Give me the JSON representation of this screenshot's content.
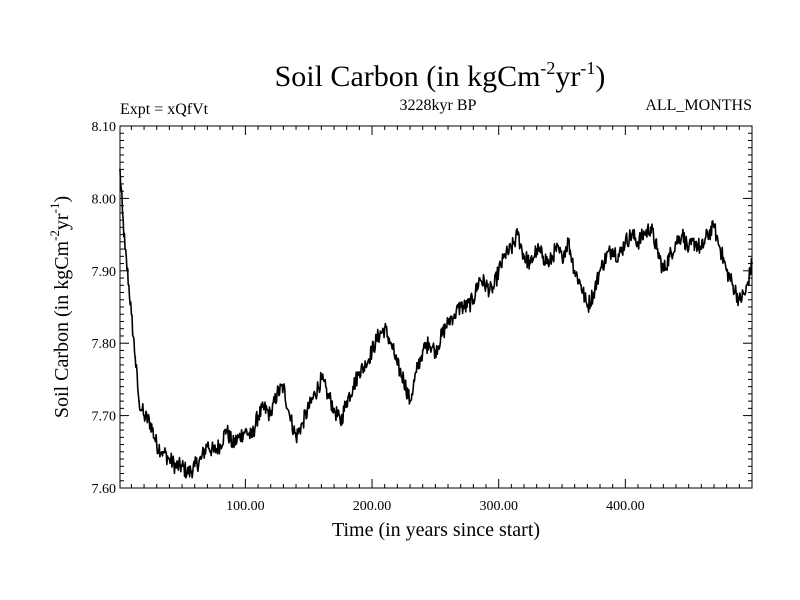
{
  "chart_data": {
    "type": "line",
    "title": "Soil Carbon (in kgCm",
    "title_sup1": "-2",
    "title_mid": "yr",
    "title_sup2": "-1",
    "title_end": ")",
    "expt_label": "Expt = xQfVt",
    "period_label": "3228kyr BP",
    "months_label": "ALL_MONTHS",
    "xlabel": "Time (in years since start)",
    "ylabel": "Soil Carbon (in kgCm",
    "ylabel_sup1": "-2",
    "ylabel_mid": "yr",
    "ylabel_sup2": "-1",
    "ylabel_end": ")",
    "xlim": [
      1,
      500
    ],
    "ylim": [
      7.6,
      8.1
    ],
    "x_ticks": [
      100,
      200,
      300,
      400
    ],
    "x_tick_labels": [
      "100.00",
      "200.00",
      "300.00",
      "400.00"
    ],
    "y_ticks": [
      7.6,
      7.7,
      7.8,
      7.9,
      8.0,
      8.1
    ],
    "y_tick_labels": [
      "7.60",
      "7.70",
      "7.80",
      "7.90",
      "8.00",
      "8.10"
    ],
    "series": [
      {
        "name": "Soil Carbon",
        "color": "#000000",
        "x": [
          1,
          3,
          5,
          8,
          10,
          13,
          16,
          20,
          25,
          30,
          35,
          40,
          45,
          50,
          55,
          60,
          65,
          70,
          75,
          80,
          85,
          90,
          95,
          100,
          105,
          110,
          115,
          120,
          125,
          130,
          135,
          140,
          145,
          150,
          155,
          160,
          165,
          170,
          175,
          180,
          185,
          190,
          195,
          200,
          205,
          210,
          215,
          220,
          225,
          230,
          235,
          240,
          245,
          250,
          255,
          260,
          265,
          270,
          275,
          280,
          285,
          290,
          295,
          300,
          305,
          310,
          315,
          320,
          325,
          330,
          335,
          340,
          345,
          350,
          355,
          360,
          365,
          370,
          375,
          380,
          385,
          390,
          395,
          400,
          405,
          410,
          415,
          420,
          425,
          430,
          435,
          440,
          445,
          450,
          455,
          460,
          465,
          470,
          475,
          480,
          485,
          490,
          495,
          500
        ],
        "y": [
          8.04,
          7.98,
          7.93,
          7.88,
          7.84,
          7.78,
          7.72,
          7.7,
          7.69,
          7.66,
          7.65,
          7.64,
          7.63,
          7.63,
          7.62,
          7.63,
          7.64,
          7.66,
          7.65,
          7.66,
          7.68,
          7.66,
          7.67,
          7.68,
          7.67,
          7.7,
          7.71,
          7.7,
          7.73,
          7.74,
          7.7,
          7.67,
          7.69,
          7.71,
          7.73,
          7.75,
          7.73,
          7.71,
          7.69,
          7.72,
          7.74,
          7.76,
          7.77,
          7.79,
          7.81,
          7.82,
          7.8,
          7.77,
          7.75,
          7.72,
          7.76,
          7.79,
          7.8,
          7.79,
          7.81,
          7.83,
          7.84,
          7.85,
          7.85,
          7.86,
          7.89,
          7.88,
          7.87,
          7.9,
          7.92,
          7.93,
          7.95,
          7.92,
          7.91,
          7.93,
          7.92,
          7.91,
          7.93,
          7.92,
          7.94,
          7.9,
          7.88,
          7.85,
          7.87,
          7.9,
          7.92,
          7.93,
          7.92,
          7.94,
          7.95,
          7.94,
          7.95,
          7.96,
          7.93,
          7.9,
          7.92,
          7.94,
          7.95,
          7.93,
          7.94,
          7.93,
          7.95,
          7.96,
          7.93,
          7.9,
          7.88,
          7.86,
          7.87,
          7.91
        ]
      }
    ]
  }
}
